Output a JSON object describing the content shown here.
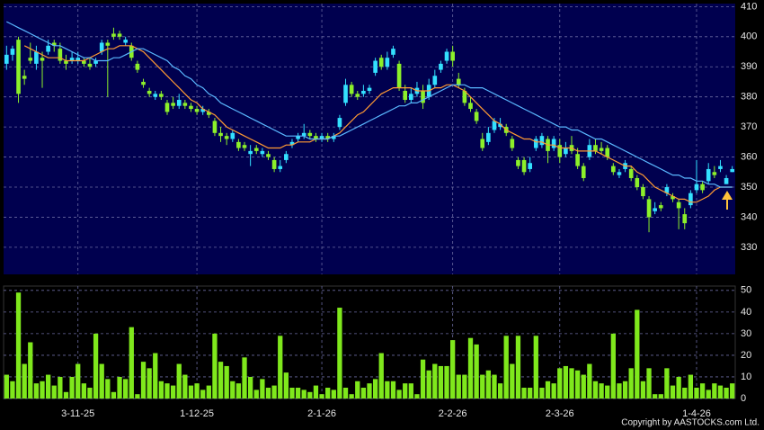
{
  "chart_data": [
    {
      "type": "candlestick",
      "up_color": "#33e0ff",
      "down_color": "#8cf02a",
      "open": [
        391,
        394,
        399,
        387,
        393,
        391,
        393,
        395,
        398,
        396,
        392,
        392,
        392,
        392,
        391,
        391,
        395,
        398,
        401,
        401,
        398,
        397,
        391,
        385,
        382,
        380,
        381,
        378,
        378,
        377,
        378,
        377,
        376,
        375,
        375,
        372,
        368,
        367,
        366,
        365,
        364,
        361,
        363,
        361,
        361,
        359,
        356,
        359,
        364,
        366,
        367,
        368,
        367,
        366,
        367,
        366,
        370,
        378,
        384,
        381,
        381,
        382,
        388,
        393,
        390,
        394,
        391,
        382,
        379,
        381,
        382,
        380,
        384,
        389,
        392,
        395,
        386,
        382,
        378,
        375,
        366,
        365,
        369,
        370,
        370,
        366,
        359,
        359,
        356,
        363,
        364,
        366,
        363,
        364,
        361,
        364,
        361,
        357,
        360,
        364,
        363,
        363,
        357,
        354,
        356,
        356,
        353,
        350,
        346,
        342,
        344,
        348,
        347,
        345,
        341,
        344,
        349,
        351,
        352,
        355,
        356,
        351,
        355
      ],
      "high": [
        397,
        397,
        400,
        389,
        398,
        397,
        395,
        399,
        399,
        398,
        394,
        395,
        395,
        393,
        393,
        393,
        399,
        399,
        403,
        402,
        400,
        398,
        392,
        386,
        383,
        382,
        382,
        379,
        380,
        381,
        379,
        378,
        377,
        377,
        376,
        373,
        370,
        368,
        369,
        366,
        365,
        364,
        364,
        363,
        362,
        360,
        359,
        362,
        366,
        368,
        371,
        369,
        368,
        368,
        368,
        368,
        374,
        386,
        385,
        382,
        384,
        384,
        393,
        394,
        395,
        397,
        392,
        384,
        383,
        385,
        384,
        386,
        389,
        392,
        396,
        397,
        388,
        383,
        380,
        376,
        368,
        370,
        373,
        373,
        371,
        367,
        360,
        360,
        360,
        367,
        368,
        367,
        367,
        366,
        365,
        367,
        363,
        358,
        366,
        366,
        365,
        364,
        358,
        356,
        359,
        357,
        354,
        351,
        347,
        345,
        345,
        351,
        348,
        346,
        343,
        349,
        359,
        352,
        358,
        357,
        359,
        354,
        357
      ],
      "low": [
        389,
        392,
        378,
        384,
        391,
        389,
        383,
        394,
        395,
        391,
        389,
        391,
        391,
        390,
        389,
        390,
        394,
        380,
        399,
        399,
        397,
        392,
        388,
        383,
        380,
        379,
        379,
        374,
        376,
        376,
        376,
        375,
        374,
        374,
        373,
        367,
        365,
        364,
        365,
        362,
        362,
        357,
        361,
        360,
        359,
        355,
        355,
        358,
        363,
        365,
        366,
        366,
        365,
        365,
        365,
        365,
        369,
        377,
        380,
        379,
        380,
        381,
        387,
        389,
        389,
        393,
        382,
        378,
        378,
        380,
        376,
        379,
        383,
        388,
        391,
        390,
        383,
        377,
        375,
        371,
        362,
        364,
        368,
        369,
        367,
        362,
        356,
        354,
        355,
        362,
        363,
        358,
        362,
        358,
        360,
        361,
        356,
        352,
        359,
        361,
        361,
        359,
        354,
        353,
        355,
        352,
        349,
        346,
        335,
        341,
        342,
        347,
        345,
        336,
        336,
        343,
        348,
        348,
        351,
        353,
        355,
        351,
        355
      ],
      "close": [
        394,
        396,
        381,
        386,
        392,
        395,
        392,
        397,
        397,
        392,
        391,
        393,
        393,
        391,
        390,
        392,
        398,
        397,
        400,
        400,
        399,
        393,
        389,
        384,
        381,
        381,
        380,
        375,
        377,
        379,
        377,
        376,
        375,
        376,
        374,
        368,
        367,
        366,
        368,
        363,
        363,
        362,
        362,
        362,
        360,
        356,
        357,
        361,
        365,
        367,
        368,
        367,
        366,
        367,
        366,
        367,
        373,
        384,
        381,
        380,
        382,
        383,
        392,
        390,
        393,
        396,
        383,
        379,
        381,
        383,
        378,
        384,
        387,
        391,
        395,
        392,
        384,
        378,
        376,
        372,
        363,
        368,
        372,
        371,
        368,
        363,
        357,
        355,
        358,
        366,
        367,
        362,
        366,
        360,
        363,
        362,
        357,
        353,
        364,
        362,
        362,
        360,
        355,
        355,
        358,
        353,
        350,
        347,
        340,
        343,
        343,
        350,
        346,
        343,
        338,
        348,
        351,
        349,
        356,
        354,
        357,
        353,
        356
      ],
      "series": [
        {
          "color": "#ff9a33",
          "values": [
            null,
            null,
            null,
            397,
            396,
            395,
            394,
            393,
            393,
            393,
            392,
            392,
            392,
            392,
            393,
            394,
            395,
            396,
            396,
            397,
            397,
            397,
            396,
            395,
            393,
            391,
            389,
            387,
            385,
            383,
            381,
            379,
            378,
            376,
            375,
            374,
            372,
            370,
            369,
            368,
            367,
            366,
            365,
            364,
            363,
            363,
            363,
            364,
            364,
            365,
            365,
            365,
            366,
            366,
            366,
            367,
            368,
            370,
            372,
            374,
            375,
            377,
            379,
            381,
            382,
            383,
            383,
            383,
            383,
            382,
            382,
            382,
            383,
            383,
            384,
            384,
            383,
            382,
            380,
            378,
            376,
            374,
            372,
            371,
            369,
            368,
            367,
            366,
            366,
            365,
            365,
            364,
            364,
            363,
            363,
            363,
            362,
            362,
            362,
            362,
            361,
            360,
            359,
            358,
            357,
            357,
            355,
            354,
            352,
            350,
            349,
            348,
            347,
            346,
            346,
            345,
            345,
            346,
            347,
            349,
            350,
            350,
            350
          ]
        },
        {
          "color": "#5ab8ff",
          "values": [
            405,
            404,
            403,
            402,
            401,
            400,
            399,
            398,
            397,
            397,
            396,
            395,
            394,
            393,
            393,
            392,
            392,
            392,
            393,
            393,
            394,
            395,
            396,
            396,
            395,
            394,
            393,
            392,
            390,
            389,
            387,
            386,
            384,
            383,
            381,
            380,
            378,
            377,
            376,
            375,
            374,
            373,
            372,
            371,
            370,
            369,
            368,
            367,
            367,
            367,
            367,
            366,
            366,
            366,
            366,
            367,
            367,
            368,
            369,
            370,
            371,
            372,
            373,
            374,
            375,
            376,
            377,
            377,
            378,
            378,
            379,
            380,
            381,
            382,
            383,
            384,
            384,
            384,
            383,
            383,
            383,
            382,
            381,
            380,
            379,
            378,
            377,
            376,
            375,
            374,
            373,
            372,
            371,
            370,
            370,
            369,
            369,
            368,
            367,
            366,
            366,
            365,
            364,
            363,
            362,
            361,
            360,
            359,
            358,
            357,
            356,
            355,
            354,
            354,
            353,
            353,
            352,
            352,
            351,
            351,
            350,
            350,
            350
          ]
        }
      ],
      "ylim": [
        321,
        411
      ],
      "yticks": [
        330,
        340,
        350,
        360,
        370,
        380,
        390,
        400,
        410
      ],
      "grid": true
    },
    {
      "type": "bar",
      "color": "#7fe81c",
      "categories": [
        null,
        null,
        null,
        null,
        null,
        null,
        null,
        null,
        null,
        null,
        null,
        null,
        "3-11-25",
        null,
        null,
        null,
        null,
        null,
        null,
        null,
        null,
        null,
        null,
        null,
        null,
        null,
        null,
        null,
        null,
        null,
        null,
        null,
        "1-12-25",
        null,
        null,
        null,
        null,
        null,
        null,
        null,
        null,
        null,
        null,
        null,
        null,
        null,
        null,
        null,
        null,
        null,
        null,
        null,
        null,
        "2-1-26",
        null,
        null,
        null,
        null,
        null,
        null,
        null,
        null,
        null,
        null,
        null,
        null,
        null,
        null,
        null,
        null,
        null,
        null,
        null,
        null,
        null,
        "2-2-26",
        null,
        null,
        null,
        null,
        null,
        null,
        null,
        null,
        null,
        null,
        null,
        null,
        null,
        null,
        null,
        null,
        null,
        "2-3-26",
        null,
        null,
        null,
        null,
        null,
        null,
        null,
        null,
        null,
        null,
        null,
        null,
        null,
        null,
        null,
        null,
        null,
        null,
        null,
        null,
        null,
        null,
        "1-4-26",
        null,
        null,
        null,
        null,
        null,
        null
      ],
      "values": [
        11,
        8,
        49,
        16,
        26,
        7,
        8,
        11,
        6,
        10,
        3,
        10,
        16,
        7,
        5,
        30,
        16,
        9,
        3,
        10,
        9,
        33,
        2,
        17,
        14,
        21,
        8,
        7,
        6,
        16,
        11,
        6,
        7,
        4,
        6,
        30,
        17,
        15,
        8,
        7,
        19,
        10,
        4,
        9,
        5,
        6,
        29,
        12,
        5,
        5,
        4,
        3,
        6,
        2,
        5,
        4,
        42,
        5,
        2,
        8,
        5,
        7,
        9,
        21,
        8,
        8,
        4,
        7,
        7,
        2,
        18,
        13,
        16,
        15,
        15,
        27,
        11,
        11,
        28,
        25,
        11,
        13,
        11,
        7,
        29,
        16,
        29,
        5,
        5,
        29,
        5,
        8,
        7,
        14,
        15,
        14,
        13,
        11,
        16,
        8,
        7,
        6,
        30,
        7,
        8,
        14,
        41,
        8,
        14,
        2,
        2,
        14,
        6,
        10,
        5,
        11,
        5,
        7,
        4,
        7,
        6,
        5,
        7
      ],
      "ylim": [
        0,
        52
      ],
      "yticks": [
        0,
        10,
        20,
        30,
        40,
        50
      ],
      "grid": true,
      "copyright": "Copyright by AASTOCKS.com Ltd."
    }
  ]
}
